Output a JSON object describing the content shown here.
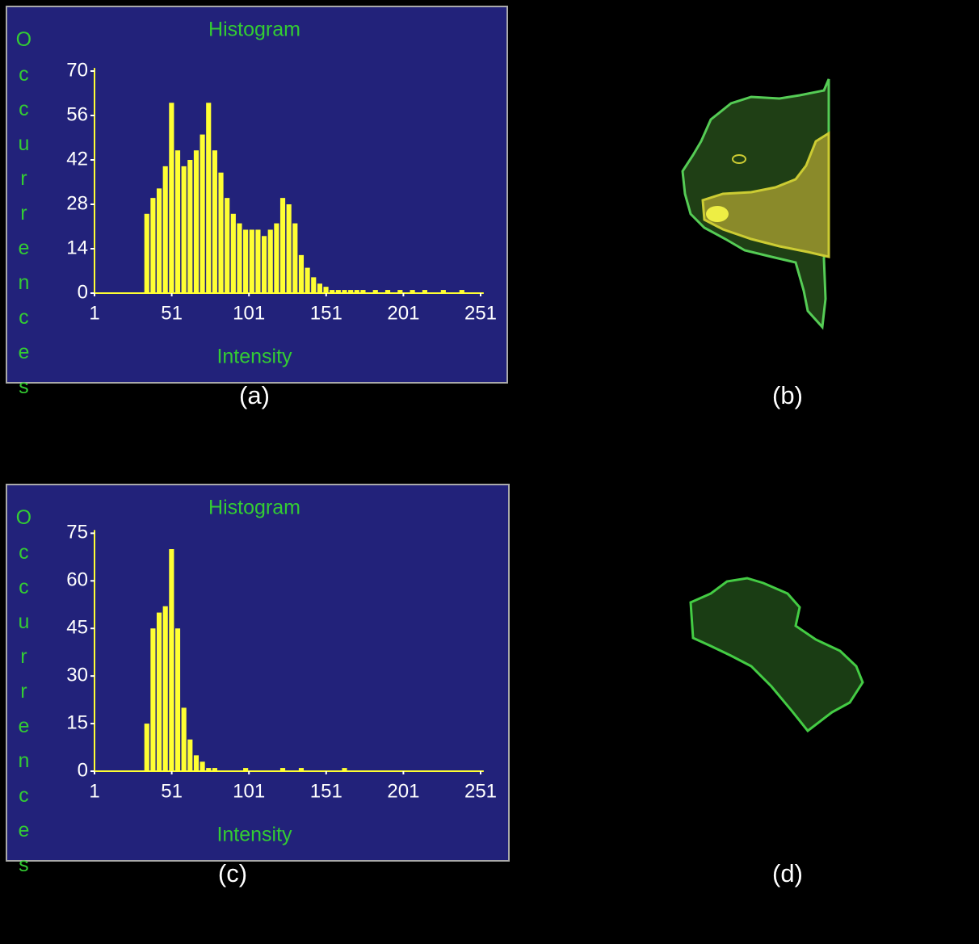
{
  "chart_data": [
    {
      "type": "histogram",
      "title": "Histogram",
      "xlabel": "Intensity",
      "ylabel": "Occurrences",
      "panel_label": "(a)",
      "bins": [
        1,
        5,
        9,
        13,
        17,
        21,
        25,
        29,
        33,
        37,
        41,
        45,
        49,
        53,
        57,
        61,
        65,
        69,
        73,
        77,
        81,
        85,
        89,
        93,
        97,
        101,
        105,
        109,
        113,
        117,
        121,
        125,
        129,
        133,
        137,
        141,
        145,
        149,
        153,
        157,
        161,
        165,
        169,
        173,
        177,
        181,
        185,
        189,
        193,
        197,
        201,
        205,
        209,
        213,
        217,
        221,
        225,
        229,
        233,
        237,
        241,
        245,
        249,
        253
      ],
      "values": [
        0,
        0,
        0,
        0,
        0,
        0,
        0,
        0,
        25,
        30,
        33,
        40,
        60,
        45,
        40,
        42,
        45,
        50,
        60,
        45,
        38,
        30,
        25,
        22,
        20,
        20,
        20,
        18,
        20,
        22,
        30,
        28,
        22,
        12,
        8,
        5,
        3,
        2,
        1,
        1,
        1,
        1,
        1,
        1,
        0,
        1,
        0,
        1,
        0,
        1,
        0,
        1,
        0,
        1,
        0,
        0,
        1,
        0,
        0,
        1,
        0,
        0,
        0
      ],
      "color": "#ffff33",
      "background": "#22227a",
      "xlim": [
        1,
        253
      ],
      "xticks": [
        1,
        51,
        101,
        151,
        201,
        251
      ],
      "ylim": [
        0,
        71
      ],
      "yticks": [
        0,
        14,
        28,
        42,
        56,
        70
      ]
    },
    {
      "type": "histogram",
      "title": "Histogram",
      "xlabel": "Intensity",
      "ylabel": "Occurrences",
      "panel_label": "(c)",
      "bins": [
        1,
        5,
        9,
        13,
        17,
        21,
        25,
        29,
        33,
        37,
        41,
        45,
        49,
        53,
        57,
        61,
        65,
        69,
        73,
        77,
        81,
        85,
        89,
        93,
        97,
        101,
        105,
        109,
        113,
        117,
        121,
        125,
        129,
        133,
        137,
        141,
        145,
        149,
        153,
        157,
        161,
        165,
        169,
        173,
        177,
        181,
        185,
        189,
        193,
        197,
        201,
        205,
        209,
        213,
        217,
        221,
        225,
        229,
        233,
        237,
        241,
        245,
        249,
        253
      ],
      "values": [
        0,
        0,
        0,
        0,
        0,
        0,
        0,
        0,
        15,
        45,
        50,
        52,
        70,
        45,
        20,
        10,
        5,
        3,
        1,
        1,
        0,
        0,
        0,
        0,
        1,
        0,
        0,
        0,
        0,
        0,
        1,
        0,
        0,
        1,
        0,
        0,
        0,
        0,
        0,
        0,
        1,
        0,
        0,
        0,
        0,
        0,
        0,
        0,
        0,
        0,
        0,
        0,
        0,
        0,
        0,
        0,
        0,
        0,
        0,
        0,
        0,
        0,
        0
      ],
      "color": "#ffff33",
      "background": "#22227a",
      "xlim": [
        1,
        253
      ],
      "xticks": [
        1,
        51,
        101,
        151,
        201,
        251
      ],
      "ylim": [
        0,
        76
      ],
      "yticks": [
        0,
        15,
        30,
        45,
        60,
        75
      ]
    }
  ],
  "images": [
    {
      "label": "(b)"
    },
    {
      "label": "(d)"
    }
  ]
}
